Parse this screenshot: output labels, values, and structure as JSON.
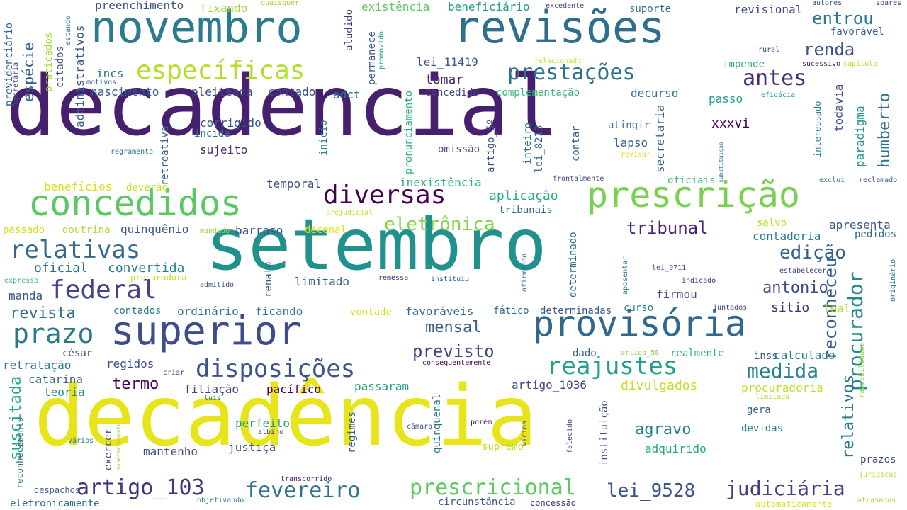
{
  "words": [
    {
      "text": "decadencial",
      "size": 118,
      "color": "#46206e"
    },
    {
      "text": "decadência",
      "size": 118,
      "color": "#e7e419"
    },
    {
      "text": "setembro",
      "size": 100,
      "color": "#21918c"
    },
    {
      "text": "novembro",
      "size": 62,
      "color": "#2a7b8e"
    },
    {
      "text": "revisões",
      "size": 62,
      "color": "#2e6f8e"
    },
    {
      "text": "superior",
      "size": 56,
      "color": "#3e4c8a"
    },
    {
      "text": "concedidos",
      "size": 50,
      "color": "#5cc863"
    },
    {
      "text": "prescrição",
      "size": 50,
      "color": "#7ad151"
    },
    {
      "text": "provisória",
      "size": 50,
      "color": "#31688e"
    },
    {
      "text": "específicas",
      "size": 36,
      "color": "#b5de2b"
    },
    {
      "text": "prestações",
      "size": 30,
      "color": "#2c728e"
    },
    {
      "text": "diversas",
      "size": 36,
      "color": "#440154"
    },
    {
      "text": "relativas",
      "size": 34,
      "color": "#31688e"
    },
    {
      "text": "federal",
      "size": 36,
      "color": "#414487"
    },
    {
      "text": "prazo",
      "size": 38,
      "color": "#2a788e"
    },
    {
      "text": "disposições",
      "size": 34,
      "color": "#3b528b"
    },
    {
      "text": "reajustes",
      "size": 34,
      "color": "#1f9e89"
    },
    {
      "text": "medida",
      "size": 28,
      "color": "#26828e"
    },
    {
      "text": "artigo_103",
      "size": 30,
      "color": "#46337e"
    },
    {
      "text": "fevereiro",
      "size": 30,
      "color": "#2c728e"
    },
    {
      "text": "prescricional",
      "size": 30,
      "color": "#5ec962"
    },
    {
      "text": "judiciária",
      "size": 28,
      "color": "#433e85"
    },
    {
      "text": "lei_9528",
      "size": 26,
      "color": "#3b528b"
    },
    {
      "text": "antes",
      "size": 30,
      "color": "#472c7a"
    },
    {
      "text": "renda",
      "size": 24,
      "color": "#3b528b"
    },
    {
      "text": "entrou",
      "size": 24,
      "color": "#2a788e"
    },
    {
      "text": "eletrônica",
      "size": 26,
      "color": "#84d44b"
    },
    {
      "text": "tribunal",
      "size": 24,
      "color": "#481f70"
    },
    {
      "text": "edição",
      "size": 26,
      "color": "#35608d"
    },
    {
      "text": "antonio",
      "size": 22,
      "color": "#3e4a89"
    },
    {
      "text": "mensal",
      "size": 22,
      "color": "#35608d"
    },
    {
      "text": "previsto",
      "size": 24,
      "color": "#414487"
    },
    {
      "text": "agravo",
      "size": 22,
      "color": "#26828e"
    },
    {
      "text": "revista",
      "size": 22,
      "color": "#2e6f8e"
    },
    {
      "text": "termo",
      "size": 22,
      "color": "#440154"
    },
    {
      "text": "reconheceu",
      "size": 24,
      "color": "#355f8d"
    },
    {
      "text": "procurador",
      "size": 28,
      "color": "#23898e"
    },
    {
      "text": "humberto",
      "size": 22,
      "color": "#2d708e"
    },
    {
      "text": "relativos",
      "size": 22,
      "color": "#2a788e"
    },
    {
      "text": "suscitada",
      "size": 22,
      "color": "#22a884"
    },
    {
      "text": "espécie",
      "size": 20,
      "color": "#33638d"
    },
    {
      "text": "administrativos",
      "size": 16,
      "color": "#38598c"
    },
    {
      "text": "oficial",
      "size": 18,
      "color": "#2c728e"
    },
    {
      "text": "convertida",
      "size": 18,
      "color": "#27808e"
    },
    {
      "text": "divulgados",
      "size": 18,
      "color": "#c2df23"
    },
    {
      "text": "procuradoria",
      "size": 16,
      "color": "#bddf26"
    },
    {
      "text": "artigo_1036",
      "size": 16,
      "color": "#414487"
    },
    {
      "text": "xxxvi",
      "size": 18,
      "color": "#440154"
    },
    {
      "text": "tomar",
      "size": 18,
      "color": "#482677"
    },
    {
      "text": "lei_11419",
      "size": 16,
      "color": "#3b528b"
    },
    {
      "text": "incs",
      "size": 16,
      "color": "#2c728e"
    },
    {
      "text": "nascimento",
      "size": 16,
      "color": "#38598c"
    },
    {
      "text": "pleiteada",
      "size": 16,
      "color": "#404688"
    },
    {
      "text": "contado",
      "size": 16,
      "color": "#3f4889"
    },
    {
      "text": "adct",
      "size": 16,
      "color": "#2a788e"
    },
    {
      "text": "corrigido",
      "size": 16,
      "color": "#3b528b"
    },
    {
      "text": "incide",
      "size": 14,
      "color": "#2a768e"
    },
    {
      "text": "sujeito",
      "size": 16,
      "color": "#472d7b"
    },
    {
      "text": "início",
      "size": 14,
      "color": "#25858e"
    },
    {
      "text": "aludido",
      "size": 14,
      "color": "#453581"
    },
    {
      "text": "permanece",
      "size": 14,
      "color": "#3a548c"
    },
    {
      "text": "concedido",
      "size": 14,
      "color": "#404588"
    },
    {
      "text": "complementação",
      "size": 14,
      "color": "#35b779"
    },
    {
      "text": "decurso",
      "size": 16,
      "color": "#2d708e"
    },
    {
      "text": "passo",
      "size": 16,
      "color": "#1fa088"
    },
    {
      "text": "todavia",
      "size": 16,
      "color": "#3e4c8a"
    },
    {
      "text": "paradigma",
      "size": 16,
      "color": "#20928c"
    },
    {
      "text": "atingir",
      "size": 14,
      "color": "#2a788e"
    },
    {
      "text": "lapso",
      "size": 16,
      "color": "#34618d"
    },
    {
      "text": "contar",
      "size": 14,
      "color": "#365c8d"
    },
    {
      "text": "secretaria",
      "size": 16,
      "color": "#33638d"
    },
    {
      "text": "impende",
      "size": 14,
      "color": "#2db27d"
    },
    {
      "text": "revisional",
      "size": 16,
      "color": "#3f4788"
    },
    {
      "text": "favorável",
      "size": 14,
      "color": "#365d8d"
    },
    {
      "text": "preenchimento",
      "size": 16,
      "color": "#3b528b"
    },
    {
      "text": "existência",
      "size": 16,
      "color": "#5ec962"
    },
    {
      "text": "beneficiário",
      "size": 16,
      "color": "#1f9e89"
    },
    {
      "text": "fixando",
      "size": 16,
      "color": "#a0da39"
    },
    {
      "text": "suporte",
      "size": 14,
      "color": "#2e6e8e"
    },
    {
      "text": "benefícios",
      "size": 16,
      "color": "#d8e219"
    },
    {
      "text": "deverão",
      "size": 14,
      "color": "#c8e020"
    },
    {
      "text": "temporal",
      "size": 16,
      "color": "#3e4c8a"
    },
    {
      "text": "inexistência",
      "size": 16,
      "color": "#29af7f"
    },
    {
      "text": "aplicação",
      "size": 18,
      "color": "#25ab82"
    },
    {
      "text": "tribunais",
      "size": 14,
      "color": "#2f6b8e"
    },
    {
      "text": "oficiais",
      "size": 14,
      "color": "#3dbc74"
    },
    {
      "text": "quinquênio",
      "size": 16,
      "color": "#38598c"
    },
    {
      "text": "barroso",
      "size": 16,
      "color": "#414487"
    },
    {
      "text": "decenal",
      "size": 14,
      "color": "#e2e418"
    },
    {
      "text": "passado",
      "size": 14,
      "color": "#d0e11c"
    },
    {
      "text": "doutrina",
      "size": 14,
      "color": "#aadc32"
    },
    {
      "text": "salvo",
      "size": 14,
      "color": "#b8de29"
    },
    {
      "text": "apresenta",
      "size": 16,
      "color": "#39568c"
    },
    {
      "text": "pedidos",
      "size": 14,
      "color": "#31688e"
    },
    {
      "text": "contadoria",
      "size": 16,
      "color": "#287d8e"
    },
    {
      "text": "limitado",
      "size": 16,
      "color": "#34618d"
    },
    {
      "text": "firmou",
      "size": 16,
      "color": "#3e4989"
    },
    {
      "text": "manda",
      "size": 16,
      "color": "#39558c"
    },
    {
      "text": "contados",
      "size": 14,
      "color": "#29798e"
    },
    {
      "text": "ordinário",
      "size": 16,
      "color": "#2b748e"
    },
    {
      "text": "ficando",
      "size": 16,
      "color": "#2a788e"
    },
    {
      "text": "favoráveis",
      "size": 16,
      "color": "#306a8e"
    },
    {
      "text": "fático",
      "size": 14,
      "color": "#2c738e"
    },
    {
      "text": "determinadas",
      "size": 14,
      "color": "#38588c"
    },
    {
      "text": "curso",
      "size": 14,
      "color": "#287c8e"
    },
    {
      "text": "sítio",
      "size": 18,
      "color": "#472f7d"
    },
    {
      "text": "leal",
      "size": 16,
      "color": "#bade28"
    },
    {
      "text": "vontade",
      "size": 14,
      "color": "#dae319"
    },
    {
      "text": "renato",
      "size": 14,
      "color": "#3c4f8a"
    },
    {
      "text": "determinado",
      "size": 14,
      "color": "#2f6c8e"
    },
    {
      "text": "césar",
      "size": 14,
      "color": "#414487"
    },
    {
      "text": "retratação",
      "size": 16,
      "color": "#2a768e"
    },
    {
      "text": "regidos",
      "size": 16,
      "color": "#3d4e8a"
    },
    {
      "text": "dado",
      "size": 14,
      "color": "#33638d"
    },
    {
      "text": "realmente",
      "size": 14,
      "color": "#32b67a"
    },
    {
      "text": "inss",
      "size": 14,
      "color": "#3a548c"
    },
    {
      "text": "calculado",
      "size": 16,
      "color": "#2a788e"
    },
    {
      "text": "catarina",
      "size": 16,
      "color": "#33638d"
    },
    {
      "text": "teoria",
      "size": 16,
      "color": "#26828e"
    },
    {
      "text": "filiação",
      "size": 16,
      "color": "#433e85"
    },
    {
      "text": "pacífico",
      "size": 16,
      "color": "#440154"
    },
    {
      "text": "passaram",
      "size": 16,
      "color": "#1fa187"
    },
    {
      "text": "perfeito",
      "size": 16,
      "color": "#1e9c89"
    },
    {
      "text": "justiça",
      "size": 16,
      "color": "#3b528b"
    },
    {
      "text": "mantenho",
      "size": 16,
      "color": "#3e4989"
    },
    {
      "text": "supremo",
      "size": 14,
      "color": "#c2df23"
    },
    {
      "text": "adquirido",
      "size": 16,
      "color": "#21a685"
    },
    {
      "text": "gera",
      "size": 14,
      "color": "#34618d"
    },
    {
      "text": "devidas",
      "size": 14,
      "color": "#27808e"
    },
    {
      "text": "prazos",
      "size": 14,
      "color": "#3e4a89"
    },
    {
      "text": "regimes",
      "size": 14,
      "color": "#35608d"
    },
    {
      "text": "quinquenal",
      "size": 14,
      "color": "#2a788e"
    },
    {
      "text": "pronunciamento",
      "size": 14,
      "color": "#29af7f"
    },
    {
      "text": "artigo_5º",
      "size": 14,
      "color": "#3d4e8a"
    },
    {
      "text": "inteiro",
      "size": 14,
      "color": "#2a788e"
    },
    {
      "text": "lei_8213",
      "size": 14,
      "color": "#355f8d"
    },
    {
      "text": "instituição",
      "size": 14,
      "color": "#3c508b"
    },
    {
      "text": "interessado",
      "size": 12,
      "color": "#26828e"
    },
    {
      "text": "retroativa",
      "size": 14,
      "color": "#31688e"
    },
    {
      "text": "previdenciário",
      "size": 14,
      "color": "#33638d"
    },
    {
      "text": "praticados",
      "size": 14,
      "color": "#a5db36"
    },
    {
      "text": "citados",
      "size": 14,
      "color": "#3b528b"
    },
    {
      "text": "omissão",
      "size": 14,
      "color": "#3e4c8a"
    },
    {
      "text": "exercer",
      "size": 14,
      "color": "#3e4989"
    },
    {
      "text": "eletronicamente",
      "size": 14,
      "color": "#2e6f8e"
    },
    {
      "text": "circunstância",
      "size": 14,
      "color": "#3a548c"
    },
    {
      "text": "concessão",
      "size": 12,
      "color": "#46307e"
    },
    {
      "text": "automaticamente",
      "size": 12,
      "color": "#d8e219"
    },
    {
      "text": "despachos",
      "size": 12,
      "color": "#38598c"
    },
    {
      "text": "objetivando",
      "size": 10,
      "color": "#27808e"
    },
    {
      "text": "transcorrido",
      "size": 10,
      "color": "#481668"
    },
    {
      "text": "jurídicas",
      "size": 10,
      "color": "#b8de29"
    },
    {
      "text": "atrasados",
      "size": 10,
      "color": "#a8db34"
    },
    {
      "text": "quaisquer",
      "size": 10,
      "color": "#a0da39"
    },
    {
      "text": "excedente",
      "size": 10,
      "color": "#404688"
    },
    {
      "text": "autores",
      "size": 10,
      "color": "#3b528b"
    },
    {
      "text": "soares",
      "size": 10,
      "color": "#453781"
    },
    {
      "text": "rural",
      "size": 10,
      "color": "#3e4c8a"
    },
    {
      "text": "sucessivo",
      "size": 10,
      "color": "#481a6c"
    },
    {
      "text": "capítulo",
      "size": 10,
      "color": "#b5de2b"
    },
    {
      "text": "relacionado",
      "size": 10,
      "color": "#c8e020"
    },
    {
      "text": "eficácia",
      "size": 10,
      "color": "#1f9e89"
    },
    {
      "text": "motivos",
      "size": 10,
      "color": "#38598c"
    },
    {
      "text": "estando",
      "size": 10,
      "color": "#2c728e"
    },
    {
      "text": "promovida",
      "size": 10,
      "color": "#1fa187"
    },
    {
      "text": "secretária",
      "size": 10,
      "color": "#3e4a89"
    },
    {
      "text": "regramento",
      "size": 10,
      "color": "#2a788e"
    },
    {
      "text": "revisar",
      "size": 10,
      "color": "#d0e11c"
    },
    {
      "text": "substituição",
      "size": 8,
      "color": "#27808e"
    },
    {
      "text": "frontalmente",
      "size": 10,
      "color": "#3f4889"
    },
    {
      "text": "exclui",
      "size": 10,
      "color": "#2a788e"
    },
    {
      "text": "reclamado",
      "size": 10,
      "color": "#3b528b"
    },
    {
      "text": "prejudicial",
      "size": 10,
      "color": "#c2df23"
    },
    {
      "text": "mandado",
      "size": 10,
      "color": "#9bd93c"
    },
    {
      "text": "expresso",
      "size": 10,
      "color": "#3dbc74"
    },
    {
      "text": "admitido",
      "size": 10,
      "color": "#3b528b"
    },
    {
      "text": "remessa",
      "size": 10,
      "color": "#472d7b"
    },
    {
      "text": "instituiu",
      "size": 10,
      "color": "#38598c"
    },
    {
      "text": "afirmando",
      "size": 10,
      "color": "#2e6f8e"
    },
    {
      "text": "aposentar",
      "size": 10,
      "color": "#2a788e"
    },
    {
      "text": "indicado",
      "size": 10,
      "color": "#46337e"
    },
    {
      "text": "lei_9711",
      "size": 10,
      "color": "#3e4c8a"
    },
    {
      "text": "estabelecer",
      "size": 10,
      "color": "#414487"
    },
    {
      "text": "originário",
      "size": 10,
      "color": "#2c728e"
    },
    {
      "text": "artigo_58",
      "size": 10,
      "color": "#86d549"
    },
    {
      "text": "consequentemente",
      "size": 10,
      "color": "#440154"
    },
    {
      "text": "juntados",
      "size": 10,
      "color": "#404688"
    },
    {
      "text": "razoabilidade",
      "size": 10,
      "color": "#8bd646"
    },
    {
      "text": "limitada",
      "size": 10,
      "color": "#b8de29"
    },
    {
      "text": "criar",
      "size": 10,
      "color": "#3e4c8a"
    },
    {
      "text": "luís",
      "size": 10,
      "color": "#2a788e"
    },
    {
      "text": "monetariamente",
      "size": 8,
      "color": "#9bd93c"
    },
    {
      "text": "albino",
      "size": 10,
      "color": "#472d7b"
    },
    {
      "text": "câmara",
      "size": 10,
      "color": "#3b528b"
    },
    {
      "text": "porém",
      "size": 10,
      "color": "#440154"
    },
    {
      "text": "vícios",
      "size": 10,
      "color": "#3b528b"
    },
    {
      "text": "falecido",
      "size": 10,
      "color": "#3e4c8a"
    },
    {
      "text": "vários",
      "size": 10,
      "color": "#2a788e"
    },
    {
      "text": "procuradora",
      "size": 12,
      "color": "#c8e020"
    },
    {
      "text": "reconhecimento",
      "size": 12,
      "color": "#2c728e"
    }
  ]
}
